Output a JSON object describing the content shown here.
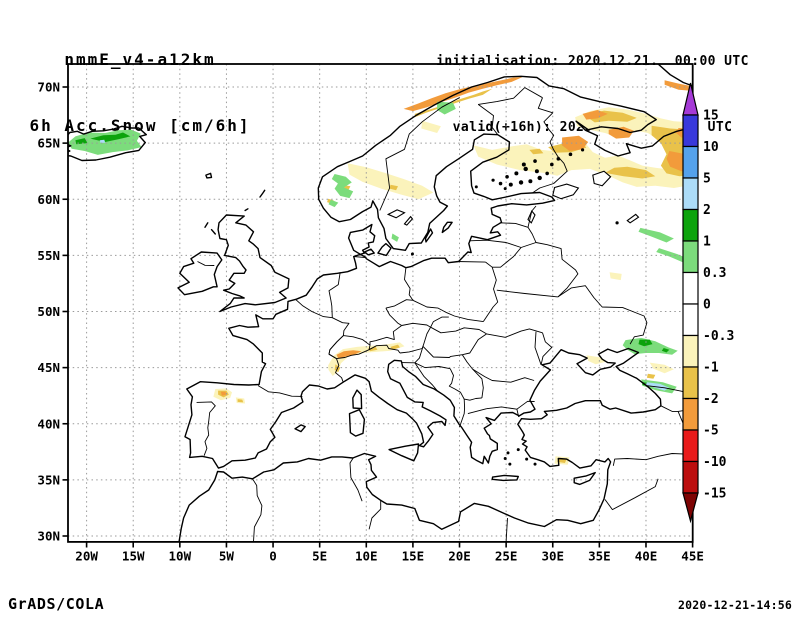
{
  "header": {
    "model": "nmmE_v4-a12km",
    "field": "6h Acc.Snow [cm/6h]",
    "init_line": "initialisation: 2020.12.21.  00:00 UTC",
    "valid_line": "valid(+16h): 2020.DEC.21 16:00 UTC"
  },
  "footer": {
    "left": "GrADS/COLA",
    "right": "2020-12-21-14:56"
  },
  "axes": {
    "lat_labels": [
      "70N",
      "65N",
      "60N",
      "55N",
      "50N",
      "45N",
      "40N",
      "35N",
      "30N"
    ],
    "lat_values": [
      70,
      65,
      60,
      55,
      50,
      45,
      40,
      35,
      30
    ],
    "lon_labels": [
      "20W",
      "15W",
      "10W",
      "5W",
      "0",
      "5E",
      "10E",
      "15E",
      "20E",
      "25E",
      "30E",
      "35E",
      "40E",
      "45E"
    ],
    "lon_values": [
      -20,
      -15,
      -10,
      -5,
      0,
      5,
      10,
      15,
      20,
      25,
      30,
      35,
      40,
      45
    ]
  },
  "colorbar": {
    "labels": [
      "15",
      "10",
      "5",
      "2",
      "1",
      "0.3",
      "0",
      "-0.3",
      "-1",
      "-2",
      "-5",
      "-10",
      "-15"
    ],
    "segment_colors": [
      "#3939DB",
      "#55A2EC",
      "#ACDCF8",
      "#0CA30C",
      "#7CDC7C",
      "#FFFFFF",
      "#FFFFFF",
      "#FBF3BB",
      "#E9C24A",
      "#F29B3B",
      "#E91A1A",
      "#BC0E0E"
    ],
    "top_color": "#A53AD6",
    "bottom_color": "#7E0404"
  },
  "palette": {
    "pale_yellow": "#FBF3BB",
    "gold": "#E9C24A",
    "orange": "#F29B3B",
    "light_green": "#7CDC7C",
    "green": "#0CA30C",
    "pale_blue": "#ACDCF8",
    "grid": "#9A9A9A",
    "line": "#000000"
  },
  "visible_snow_areas": [
    {
      "region": "Iceland",
      "levels": "0.3 to 2 cm (green)"
    },
    {
      "region": "SW Norway mountains",
      "levels": "0.3 to 1 cm green, -1 to -0.3 pale yellow band"
    },
    {
      "region": "North Norway coast",
      "levels": "-5 to -1 orange strip"
    },
    {
      "region": "Finland / Karelia / NW Russia",
      "levels": "-2 to -0.3 pale yellow with -5 to -2 orange cores"
    },
    {
      "region": "Alps",
      "levels": "-5 to -0.3 orange/gold ridge"
    },
    {
      "region": "NW Spain",
      "levels": "-5 to -2 orange spot"
    },
    {
      "region": "North of Sea of Azov / Caucasus",
      "levels": "0.3 to 2 green, 2 to 5 pale blue ridge"
    },
    {
      "region": "Southern Turkey",
      "levels": "-2 to -1 gold spot"
    }
  ]
}
